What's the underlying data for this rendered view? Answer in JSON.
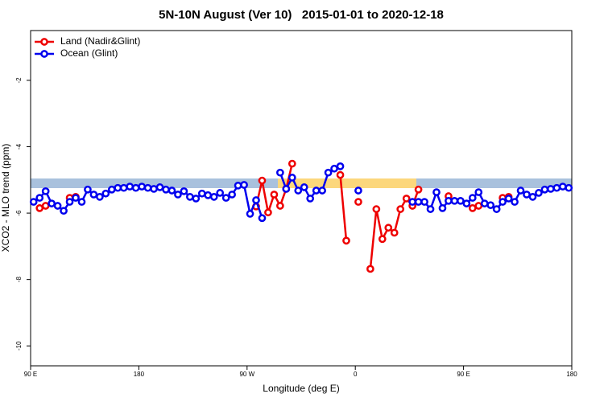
{
  "chart_data": {
    "type": "line",
    "title": "5N-10N August (Ver 10)   2015-01-01 to 2020-12-18",
    "x_label": "Longitude (deg E)",
    "y_label": "XCO2 - MLO trend (ppm)",
    "legend": "top-left",
    "x": [
      92.5,
      97.5,
      102.5,
      107.5,
      112.5,
      117.5,
      122.5,
      127.5,
      132.5,
      137.5,
      142.5,
      147.5,
      152.5,
      157.5,
      162.5,
      167.5,
      172.5,
      177.5,
      182.5,
      187.5,
      192.5,
      197.5,
      202.5,
      207.5,
      212.5,
      217.5,
      222.5,
      227.5,
      232.5,
      237.5,
      242.5,
      247.5,
      252.5,
      257.5,
      262.5,
      267.5,
      272.5,
      277.5,
      282.5,
      287.5,
      292.5,
      297.5,
      302.5,
      307.5,
      312.5,
      317.5,
      322.5,
      327.5,
      332.5,
      337.5,
      342.5,
      347.5,
      352.5,
      357.5,
      362.5,
      367.5,
      372.5,
      377.5,
      382.5,
      387.5,
      392.5,
      397.5,
      402.5,
      407.5,
      412.5,
      417.5,
      422.5,
      427.5,
      432.5,
      437.5,
      442.5,
      447.5,
      452.5,
      457.5,
      462.5,
      467.5,
      472.5,
      477.5,
      482.5,
      487.5,
      492.5,
      497.5,
      502.5,
      507.5,
      512.5,
      517.5,
      522.5,
      527.5,
      532.5,
      537.5
    ],
    "series": [
      {
        "name": "Land (Nadir&Glint)",
        "color": "#ee0000",
        "values": [
          null,
          -5.85,
          -5.78,
          null,
          null,
          null,
          -5.54,
          -5.51,
          null,
          null,
          null,
          null,
          null,
          null,
          null,
          null,
          null,
          null,
          null,
          null,
          null,
          null,
          null,
          null,
          null,
          null,
          null,
          null,
          null,
          null,
          null,
          null,
          null,
          null,
          null,
          null,
          null,
          -5.8,
          -5.02,
          -5.98,
          -5.44,
          -5.78,
          -5.27,
          -4.51,
          null,
          null,
          null,
          null,
          null,
          null,
          null,
          -4.85,
          -6.83,
          null,
          -5.66,
          null,
          -7.68,
          -5.88,
          -6.78,
          -6.44,
          -6.59,
          -5.88,
          -5.56,
          -5.78,
          -5.29,
          null,
          null,
          null,
          null,
          -5.49,
          null,
          null,
          null,
          -5.85,
          -5.78,
          null,
          null,
          null,
          -5.54,
          -5.51,
          null,
          null,
          null,
          null,
          null,
          null,
          null,
          null,
          null,
          null
        ]
      },
      {
        "name": "Ocean (Glint)",
        "color": "#0000ee",
        "values": [
          -5.66,
          -5.54,
          -5.34,
          -5.71,
          -5.78,
          -5.93,
          -5.66,
          -5.54,
          -5.66,
          -5.29,
          -5.44,
          -5.51,
          -5.41,
          -5.29,
          -5.24,
          -5.24,
          -5.2,
          -5.24,
          -5.2,
          -5.24,
          -5.27,
          -5.22,
          -5.29,
          -5.32,
          -5.44,
          -5.34,
          -5.51,
          -5.56,
          -5.41,
          -5.46,
          -5.51,
          -5.39,
          -5.54,
          -5.44,
          -5.17,
          -5.15,
          -6.02,
          -5.61,
          -6.15,
          null,
          null,
          -4.78,
          -5.27,
          -4.93,
          -5.32,
          -5.22,
          -5.56,
          -5.32,
          -5.32,
          -4.78,
          -4.66,
          -4.59,
          null,
          null,
          -5.32,
          null,
          null,
          null,
          null,
          null,
          null,
          null,
          null,
          -5.66,
          -5.66,
          -5.66,
          -5.88,
          -5.37,
          -5.85,
          -5.63,
          -5.63,
          -5.63,
          -5.71,
          -5.54,
          -5.37,
          -5.71,
          -5.76,
          -5.88,
          -5.66,
          -5.56,
          -5.66,
          -5.32,
          -5.44,
          -5.51,
          -5.39,
          -5.29,
          -5.27,
          -5.24,
          -5.2,
          -5.24
        ]
      }
    ],
    "xlim": [
      90,
      540
    ],
    "xticks": [
      {
        "value": 90,
        "label": "90 E"
      },
      180,
      {
        "value": 270,
        "label": "90 W"
      },
      {
        "value": 360,
        "label": "0"
      },
      {
        "value": 450,
        "label": "90 E"
      },
      {
        "value": 540,
        "label": "180"
      }
    ],
    "ylim": [
      -10.6,
      -0.5
    ],
    "yticks": [
      -2,
      -4,
      -6,
      -8,
      -10
    ]
  }
}
